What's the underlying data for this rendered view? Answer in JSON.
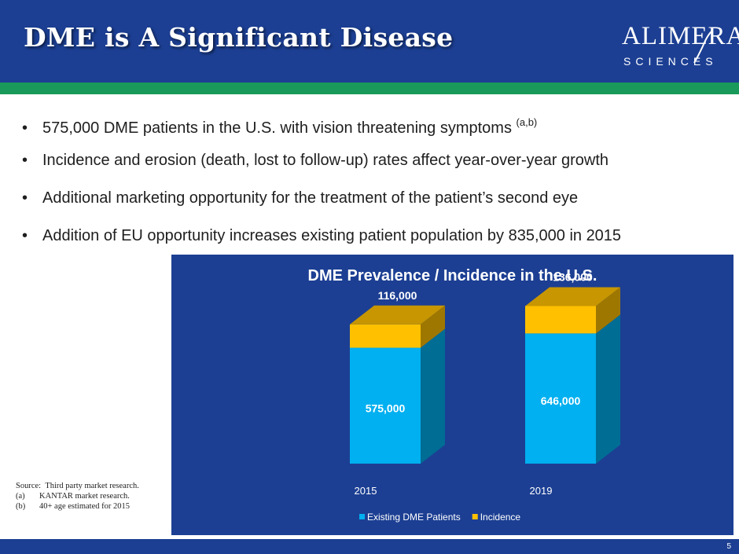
{
  "slide": {
    "title": "DME is A Significant Disease",
    "logo": {
      "main": "ALIMERA",
      "sub": "SCIENCES"
    },
    "bullets": [
      {
        "text": "575,000 DME patients in the U.S. with vision threatening symptoms ",
        "sup": "(a,b)"
      },
      {
        "text": "Incidence and erosion (death, lost to follow-up) rates affect year-over-year growth"
      },
      {
        "text": "Additional marketing opportunity for the treatment of the patient’s second eye"
      },
      {
        "text": "Addition of EU opportunity increases existing patient population by 835,000 in 2015"
      }
    ],
    "bullet_glyph": "•",
    "source": {
      "label": "Source:",
      "text": "Third party market research.",
      "notes": [
        {
          "key": "(a)",
          "text": "KANTAR market research."
        },
        {
          "key": "(b)",
          "text": "40+ age estimated for 2015"
        }
      ]
    },
    "page_number": "5"
  },
  "colors": {
    "header": "#1c3f93",
    "accent_bar": "#1a9a5a",
    "existing": "#00b0f0",
    "incidence": "#ffc000"
  },
  "chart_data": {
    "type": "bar",
    "stacked": true,
    "three_d": true,
    "title": "DME Prevalence / Incidence in the U.S.",
    "categories": [
      "2015",
      "2019"
    ],
    "series": [
      {
        "name": "Existing DME Patients",
        "values": [
          575000,
          646000
        ],
        "labels": [
          "575,000",
          "646,000"
        ],
        "color": "#00b0f0"
      },
      {
        "name": "Incidence",
        "values": [
          116000,
          136000
        ],
        "labels": [
          "116,000",
          "136,000"
        ],
        "color": "#ffc000"
      }
    ],
    "ylim": [
      0,
      850000
    ],
    "grid": false,
    "legend_position": "bottom"
  }
}
